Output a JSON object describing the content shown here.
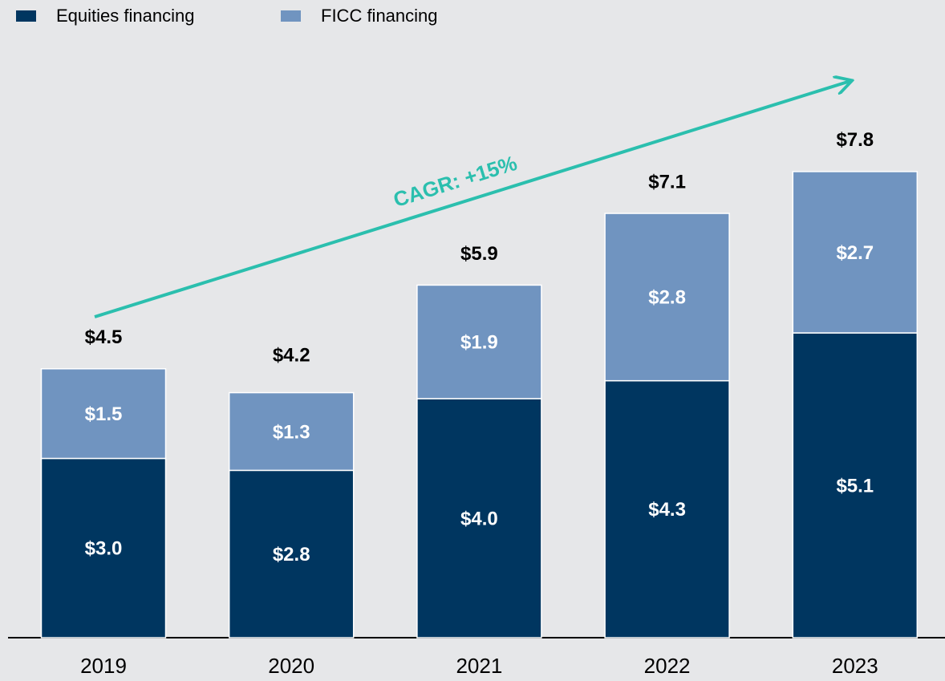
{
  "chart_data": {
    "type": "stacked_bar",
    "categories": [
      "2019",
      "2020",
      "2021",
      "2022",
      "2023"
    ],
    "series": [
      {
        "name": "Equities financing",
        "color": "#003660",
        "values": [
          3.0,
          2.8,
          4.0,
          4.3,
          5.1
        ],
        "value_labels": [
          "$3.0",
          "$2.8",
          "$4.0",
          "$4.3",
          "$5.1"
        ]
      },
      {
        "name": "FICC financing",
        "color": "#7094c0",
        "values": [
          1.5,
          1.3,
          1.9,
          2.8,
          2.7
        ],
        "value_labels": [
          "$1.5",
          "$1.3",
          "$1.9",
          "$2.8",
          "$2.7"
        ]
      }
    ],
    "totals": {
      "values": [
        4.5,
        4.2,
        5.9,
        7.1,
        7.8
      ],
      "value_labels": [
        "$4.5",
        "$4.2",
        "$5.9",
        "$7.1",
        "$7.8"
      ]
    },
    "annotation": "CAGR: +15%",
    "ylim": [
      0,
      10
    ]
  }
}
